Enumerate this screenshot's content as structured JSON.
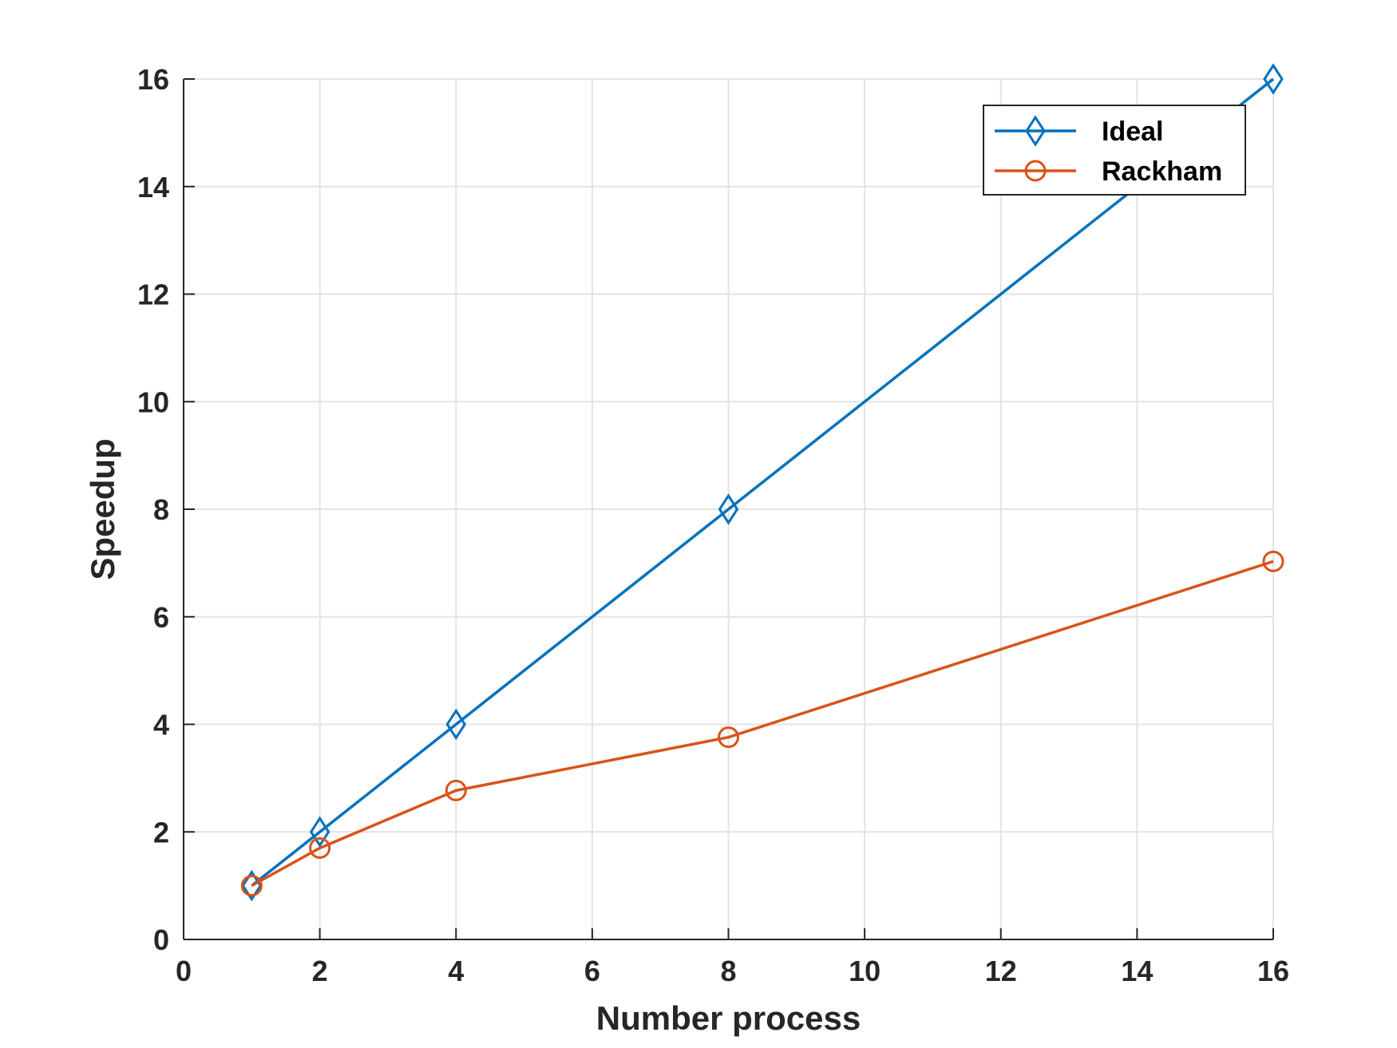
{
  "chart_data": {
    "type": "line",
    "title": "",
    "xlabel": "Number process",
    "ylabel": "Speedup",
    "xlim": [
      0,
      16
    ],
    "ylim": [
      0,
      16
    ],
    "xticks": [
      "0",
      "2",
      "4",
      "6",
      "8",
      "10",
      "12",
      "14",
      "16"
    ],
    "yticks": [
      "0",
      "2",
      "4",
      "6",
      "8",
      "10",
      "12",
      "14",
      "16"
    ],
    "grid": true,
    "legend_position": "top-right",
    "series": [
      {
        "name": "Ideal",
        "color": "#0072BD",
        "marker": "diamond",
        "x": [
          1,
          2,
          4,
          8,
          16
        ],
        "y": [
          1,
          2,
          4,
          8,
          16
        ]
      },
      {
        "name": "Rackham",
        "color": "#D95319",
        "marker": "circle",
        "x": [
          1,
          2,
          4,
          8,
          16
        ],
        "y": [
          1,
          1.7,
          2.77,
          3.76,
          7.03
        ]
      }
    ]
  }
}
